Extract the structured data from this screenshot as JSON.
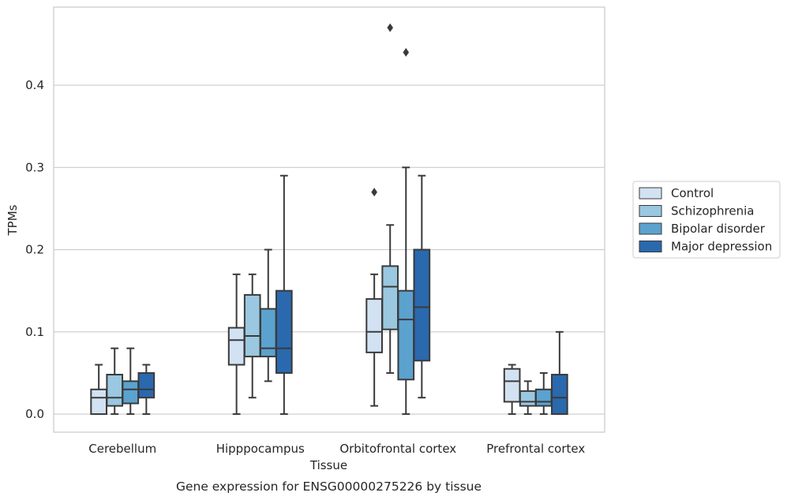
{
  "chart_data": {
    "type": "box",
    "xlabel": "Tissue",
    "ylabel": "TPMs",
    "caption": "Gene expression for ENSG00000275226 by tissue",
    "ylim": [
      -0.022,
      0.495
    ],
    "yticks": [
      0.0,
      0.1,
      0.2,
      0.3,
      0.4
    ],
    "ytick_labels": [
      "0.0",
      "0.1",
      "0.2",
      "0.3",
      "0.4"
    ],
    "grid": "horizontal",
    "legend_position": "right",
    "categories": [
      "Cerebellum",
      "Hipppocampus",
      "Orbitofrontal cortex",
      "Prefrontal cortex"
    ],
    "series": [
      {
        "name": "Control",
        "color": "#d2e2f2",
        "boxes": [
          {
            "whislo": 0.0,
            "q1": 0.0,
            "med": 0.02,
            "q3": 0.03,
            "whishi": 0.06,
            "fliers": []
          },
          {
            "whislo": 0.0,
            "q1": 0.06,
            "med": 0.09,
            "q3": 0.105,
            "whishi": 0.17,
            "fliers": []
          },
          {
            "whislo": 0.01,
            "q1": 0.075,
            "med": 0.1,
            "q3": 0.14,
            "whishi": 0.17,
            "fliers": [
              0.27
            ]
          },
          {
            "whislo": 0.0,
            "q1": 0.015,
            "med": 0.04,
            "q3": 0.055,
            "whishi": 0.06,
            "fliers": []
          }
        ]
      },
      {
        "name": "Schizophrenia",
        "color": "#9ac8e0",
        "boxes": [
          {
            "whislo": 0.0,
            "q1": 0.01,
            "med": 0.02,
            "q3": 0.048,
            "whishi": 0.08,
            "fliers": []
          },
          {
            "whislo": 0.02,
            "q1": 0.07,
            "med": 0.095,
            "q3": 0.145,
            "whishi": 0.17,
            "fliers": []
          },
          {
            "whislo": 0.05,
            "q1": 0.103,
            "med": 0.155,
            "q3": 0.18,
            "whishi": 0.23,
            "fliers": [
              0.47
            ]
          },
          {
            "whislo": 0.0,
            "q1": 0.01,
            "med": 0.015,
            "q3": 0.028,
            "whishi": 0.04,
            "fliers": []
          }
        ]
      },
      {
        "name": "Bipolar disorder",
        "color": "#5ba2cf",
        "boxes": [
          {
            "whislo": 0.0,
            "q1": 0.013,
            "med": 0.03,
            "q3": 0.04,
            "whishi": 0.08,
            "fliers": []
          },
          {
            "whislo": 0.04,
            "q1": 0.07,
            "med": 0.08,
            "q3": 0.128,
            "whishi": 0.2,
            "fliers": []
          },
          {
            "whislo": 0.0,
            "q1": 0.042,
            "med": 0.115,
            "q3": 0.15,
            "whishi": 0.3,
            "fliers": [
              0.44
            ]
          },
          {
            "whislo": 0.0,
            "q1": 0.01,
            "med": 0.015,
            "q3": 0.03,
            "whishi": 0.05,
            "fliers": []
          }
        ]
      },
      {
        "name": "Major depression",
        "color": "#2a69ae",
        "boxes": [
          {
            "whislo": 0.0,
            "q1": 0.02,
            "med": 0.03,
            "q3": 0.05,
            "whishi": 0.06,
            "fliers": []
          },
          {
            "whislo": 0.0,
            "q1": 0.05,
            "med": 0.08,
            "q3": 0.15,
            "whishi": 0.29,
            "fliers": []
          },
          {
            "whislo": 0.02,
            "q1": 0.065,
            "med": 0.13,
            "q3": 0.2,
            "whishi": 0.29,
            "fliers": []
          },
          {
            "whislo": 0.0,
            "q1": 0.0,
            "med": 0.02,
            "q3": 0.048,
            "whishi": 0.1,
            "fliers": []
          }
        ]
      }
    ]
  }
}
